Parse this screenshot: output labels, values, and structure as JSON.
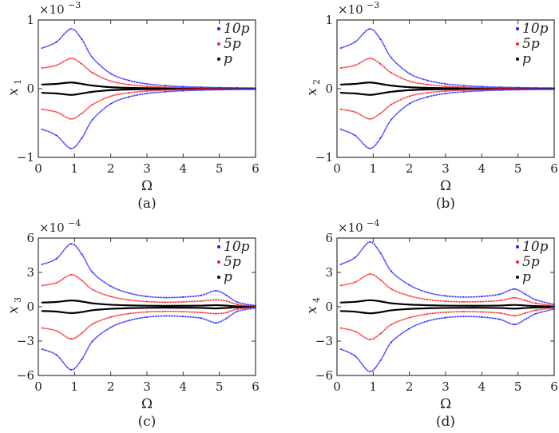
{
  "chart_data": [
    {
      "type": "scatter",
      "panel_label": "(a)",
      "xlabel": "Ω",
      "ylabel": {
        "base": "x",
        "sub": "1"
      },
      "multiplier": {
        "base": "×10",
        "exp": "−3"
      },
      "scale": 0.001,
      "xlim": [
        0,
        6
      ],
      "ylim": [
        -1,
        1
      ],
      "xticks": [
        "0",
        "1",
        "2",
        "3",
        "4",
        "5",
        "6"
      ],
      "yticks": [
        {
          "v": -1,
          "t": "−1"
        },
        {
          "v": 0,
          "t": "0"
        },
        {
          "v": 1,
          "t": "1"
        }
      ],
      "legend_position": "top-right",
      "x": [
        0.1,
        0.5,
        0.9,
        1.2,
        1.5,
        2.0,
        2.5,
        3.0,
        3.5,
        4.0,
        4.5,
        5.0,
        5.5,
        6.0
      ],
      "series": [
        {
          "name": "10p",
          "color": "#1f1fff",
          "y_upper": [
            0.59,
            0.68,
            0.87,
            0.72,
            0.45,
            0.22,
            0.12,
            0.07,
            0.045,
            0.03,
            0.022,
            0.016,
            0.012,
            0.01
          ],
          "y_lower": [
            -0.59,
            -0.68,
            -0.87,
            -0.72,
            -0.45,
            -0.22,
            -0.12,
            -0.07,
            -0.045,
            -0.03,
            -0.022,
            -0.016,
            -0.012,
            -0.01
          ]
        },
        {
          "name": "5p",
          "color": "#ff1f1f",
          "y_upper": [
            0.3,
            0.34,
            0.44,
            0.36,
            0.23,
            0.11,
            0.06,
            0.035,
            0.022,
            0.015,
            0.011,
            0.008,
            0.006,
            0.005
          ],
          "y_lower": [
            -0.3,
            -0.34,
            -0.44,
            -0.36,
            -0.23,
            -0.11,
            -0.06,
            -0.035,
            -0.022,
            -0.015,
            -0.011,
            -0.008,
            -0.006,
            -0.005
          ]
        },
        {
          "name": "p",
          "color": "#000000",
          "y_upper": [
            0.06,
            0.07,
            0.09,
            0.07,
            0.045,
            0.022,
            0.012,
            0.007,
            0.004,
            0.003,
            0.002,
            0.002,
            0.001,
            0.001
          ],
          "y_lower": [
            -0.06,
            -0.07,
            -0.09,
            -0.07,
            -0.045,
            -0.022,
            -0.012,
            -0.007,
            -0.004,
            -0.003,
            -0.002,
            -0.002,
            -0.001,
            -0.001
          ]
        }
      ]
    },
    {
      "type": "scatter",
      "panel_label": "(b)",
      "xlabel": "Ω",
      "ylabel": {
        "base": "x",
        "sub": "2"
      },
      "multiplier": {
        "base": "×10",
        "exp": "−3"
      },
      "scale": 0.001,
      "xlim": [
        0,
        6
      ],
      "ylim": [
        -1,
        1
      ],
      "xticks": [
        "0",
        "1",
        "2",
        "3",
        "4",
        "5",
        "6"
      ],
      "yticks": [
        {
          "v": -1,
          "t": "−1"
        },
        {
          "v": 0,
          "t": "0"
        },
        {
          "v": 1,
          "t": "1"
        }
      ],
      "legend_position": "top-right",
      "x": [
        0.1,
        0.5,
        0.9,
        1.2,
        1.5,
        2.0,
        2.5,
        3.0,
        3.5,
        4.0,
        4.5,
        5.0,
        5.5,
        6.0
      ],
      "series": [
        {
          "name": "10p",
          "color": "#1f1fff",
          "y_upper": [
            0.59,
            0.68,
            0.87,
            0.72,
            0.45,
            0.22,
            0.12,
            0.07,
            0.045,
            0.03,
            0.022,
            0.016,
            0.012,
            0.01
          ],
          "y_lower": [
            -0.59,
            -0.68,
            -0.87,
            -0.72,
            -0.45,
            -0.22,
            -0.12,
            -0.07,
            -0.045,
            -0.03,
            -0.022,
            -0.016,
            -0.012,
            -0.01
          ]
        },
        {
          "name": "5p",
          "color": "#ff1f1f",
          "y_upper": [
            0.3,
            0.34,
            0.44,
            0.36,
            0.23,
            0.11,
            0.06,
            0.035,
            0.022,
            0.015,
            0.011,
            0.008,
            0.006,
            0.005
          ],
          "y_lower": [
            -0.3,
            -0.34,
            -0.44,
            -0.36,
            -0.23,
            -0.11,
            -0.06,
            -0.035,
            -0.022,
            -0.015,
            -0.011,
            -0.008,
            -0.006,
            -0.005
          ]
        },
        {
          "name": "p",
          "color": "#000000",
          "y_upper": [
            0.06,
            0.07,
            0.09,
            0.07,
            0.045,
            0.022,
            0.012,
            0.007,
            0.004,
            0.003,
            0.002,
            0.002,
            0.001,
            0.001
          ],
          "y_lower": [
            -0.06,
            -0.07,
            -0.09,
            -0.07,
            -0.045,
            -0.022,
            -0.012,
            -0.007,
            -0.004,
            -0.003,
            -0.002,
            -0.002,
            -0.001,
            -0.001
          ]
        }
      ]
    },
    {
      "type": "scatter",
      "panel_label": "(c)",
      "xlabel": "Ω",
      "ylabel": {
        "base": "x",
        "sub": "3"
      },
      "multiplier": {
        "base": "×10",
        "exp": "−4"
      },
      "scale": 0.0001,
      "xlim": [
        0,
        6
      ],
      "ylim": [
        -6,
        6
      ],
      "xticks": [
        "0",
        "1",
        "2",
        "3",
        "4",
        "5",
        "6"
      ],
      "yticks": [
        {
          "v": -6,
          "t": "−6"
        },
        {
          "v": -3,
          "t": "−3"
        },
        {
          "v": 0,
          "t": "0"
        },
        {
          "v": 3,
          "t": "3"
        },
        {
          "v": 6,
          "t": "6"
        }
      ],
      "legend_position": "top-right",
      "x": [
        0.1,
        0.5,
        0.9,
        1.2,
        1.5,
        2.0,
        2.5,
        3.0,
        3.5,
        4.0,
        4.5,
        4.9,
        5.2,
        5.5,
        6.0
      ],
      "series": [
        {
          "name": "10p",
          "color": "#1f1fff",
          "y_upper": [
            3.7,
            4.2,
            5.5,
            4.6,
            3.0,
            1.8,
            1.2,
            0.9,
            0.8,
            0.85,
            1.0,
            1.4,
            1.0,
            0.4,
            0.1
          ],
          "y_lower": [
            -3.7,
            -4.2,
            -5.5,
            -4.6,
            -3.0,
            -1.8,
            -1.2,
            -0.9,
            -0.8,
            -0.85,
            -1.0,
            -1.4,
            -1.0,
            -0.4,
            -0.1
          ]
        },
        {
          "name": "5p",
          "color": "#ff1f1f",
          "y_upper": [
            1.85,
            2.1,
            2.8,
            2.3,
            1.5,
            0.9,
            0.6,
            0.45,
            0.4,
            0.43,
            0.5,
            0.6,
            0.5,
            0.2,
            0.05
          ],
          "y_lower": [
            -1.85,
            -2.1,
            -2.8,
            -2.3,
            -1.5,
            -0.9,
            -0.6,
            -0.45,
            -0.4,
            -0.43,
            -0.5,
            -0.6,
            -0.5,
            -0.2,
            -0.05
          ]
        },
        {
          "name": "p",
          "color": "#000000",
          "y_upper": [
            0.37,
            0.42,
            0.55,
            0.46,
            0.3,
            0.18,
            0.12,
            0.09,
            0.08,
            0.085,
            0.1,
            0.14,
            0.1,
            0.04,
            0.01
          ],
          "y_lower": [
            -0.37,
            -0.42,
            -0.55,
            -0.46,
            -0.3,
            -0.18,
            -0.12,
            -0.09,
            -0.08,
            -0.085,
            -0.1,
            -0.14,
            -0.1,
            -0.04,
            -0.01
          ]
        }
      ]
    },
    {
      "type": "scatter",
      "panel_label": "(d)",
      "xlabel": "Ω",
      "ylabel": {
        "base": "x",
        "sub": "4"
      },
      "multiplier": {
        "base": "×10",
        "exp": "−4"
      },
      "scale": 0.0001,
      "xlim": [
        0,
        6
      ],
      "ylim": [
        -6,
        6
      ],
      "xticks": [
        "0",
        "1",
        "2",
        "3",
        "4",
        "5",
        "6"
      ],
      "yticks": [
        {
          "v": -6,
          "t": "−6"
        },
        {
          "v": -3,
          "t": "−3"
        },
        {
          "v": 0,
          "t": "0"
        },
        {
          "v": 3,
          "t": "3"
        },
        {
          "v": 6,
          "t": "6"
        }
      ],
      "legend_position": "top-right",
      "x": [
        0.1,
        0.5,
        0.9,
        1.2,
        1.5,
        2.0,
        2.5,
        3.0,
        3.5,
        4.0,
        4.5,
        4.9,
        5.2,
        5.5,
        6.0
      ],
      "series": [
        {
          "name": "10p",
          "color": "#1f1fff",
          "y_upper": [
            3.7,
            4.3,
            5.65,
            4.7,
            3.1,
            1.9,
            1.25,
            0.95,
            0.85,
            0.9,
            1.1,
            1.55,
            1.1,
            0.6,
            0.2
          ],
          "y_lower": [
            -3.7,
            -4.3,
            -5.65,
            -4.7,
            -3.1,
            -1.9,
            -1.25,
            -0.95,
            -0.85,
            -0.9,
            -1.1,
            -1.55,
            -1.1,
            -0.6,
            -0.2
          ]
        },
        {
          "name": "5p",
          "color": "#ff1f1f",
          "y_upper": [
            1.85,
            2.15,
            2.85,
            2.35,
            1.55,
            0.95,
            0.63,
            0.48,
            0.43,
            0.45,
            0.55,
            0.78,
            0.55,
            0.3,
            0.1
          ],
          "y_lower": [
            -1.85,
            -2.15,
            -2.85,
            -2.35,
            -1.55,
            -0.95,
            -0.63,
            -0.48,
            -0.43,
            -0.45,
            -0.55,
            -0.78,
            -0.55,
            -0.3,
            -0.1
          ]
        },
        {
          "name": "p",
          "color": "#000000",
          "y_upper": [
            0.37,
            0.43,
            0.57,
            0.47,
            0.31,
            0.19,
            0.13,
            0.1,
            0.09,
            0.09,
            0.11,
            0.16,
            0.11,
            0.06,
            0.02
          ],
          "y_lower": [
            -0.37,
            -0.43,
            -0.57,
            -0.47,
            -0.31,
            -0.19,
            -0.13,
            -0.1,
            -0.09,
            -0.09,
            -0.11,
            -0.16,
            -0.11,
            -0.06,
            -0.02
          ]
        }
      ]
    }
  ]
}
